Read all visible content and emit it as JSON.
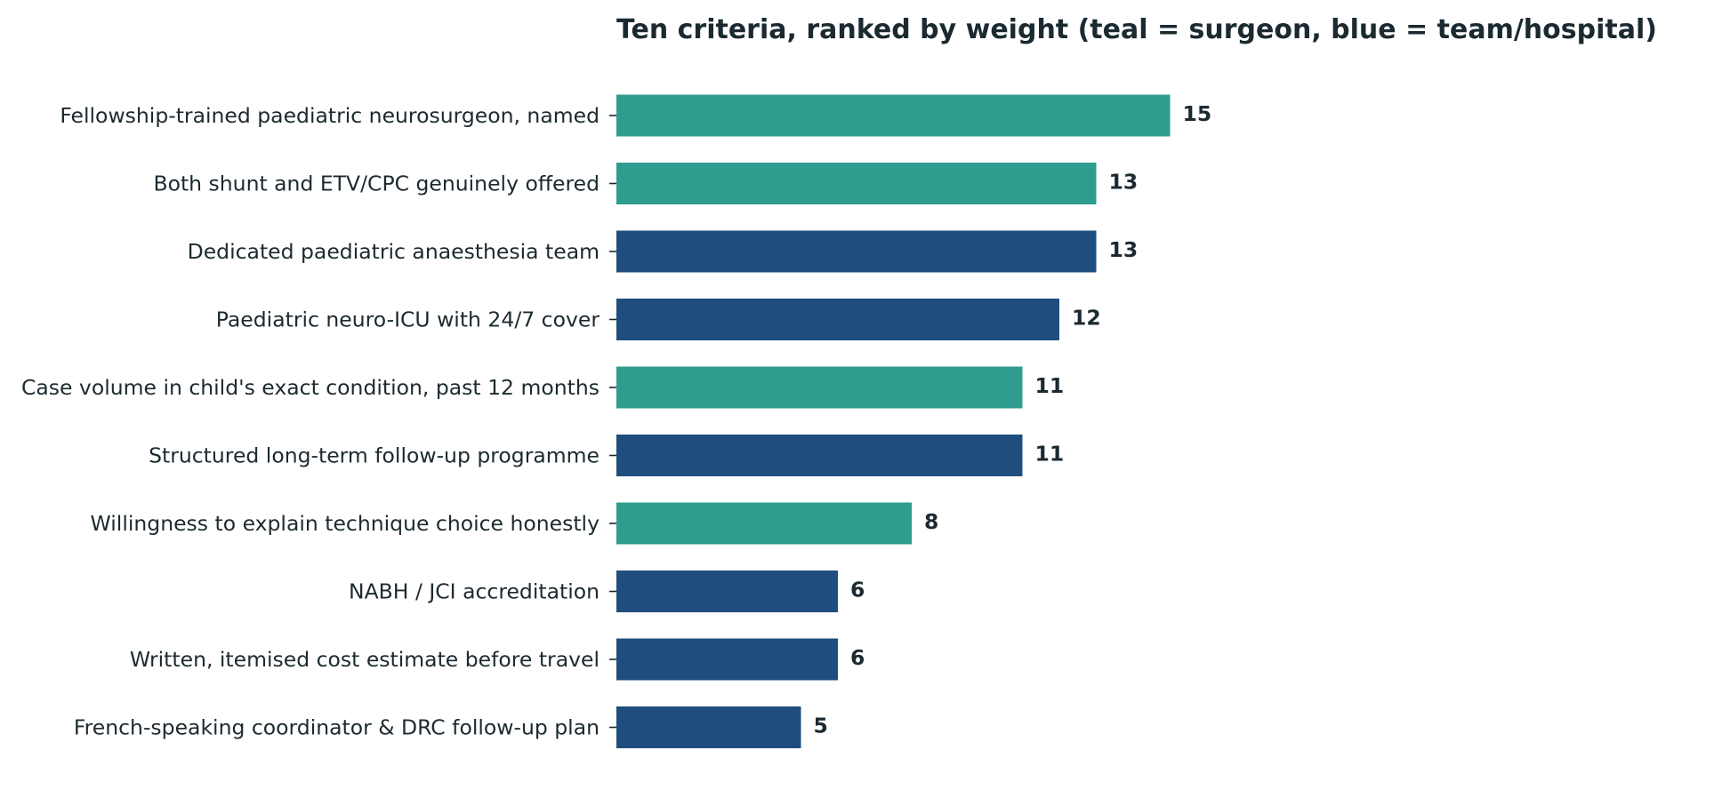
{
  "chart_data": {
    "type": "bar",
    "orientation": "horizontal",
    "title": "Ten criteria, ranked by weight (teal = surgeon, blue = team/hospital)",
    "xlabel": "",
    "ylabel": "",
    "xlim": [
      0,
      30
    ],
    "grid": false,
    "legend": "none",
    "categories": [
      "Fellowship-trained paediatric neurosurgeon, named",
      "Both shunt and ETV/CPC genuinely offered",
      "Dedicated paediatric anaesthesia team",
      "Paediatric neuro-ICU with 24/7 cover",
      "Case volume in child's exact condition, past 12 months",
      "Structured long-term follow-up programme",
      "Willingness to explain technique choice honestly",
      "NABH / JCI accreditation",
      "Written, itemised cost estimate before travel",
      "French-speaking coordinator & DRC follow-up plan"
    ],
    "values": [
      15,
      13,
      13,
      12,
      11,
      11,
      8,
      6,
      6,
      5
    ],
    "groups": [
      "surgeon",
      "surgeon",
      "team/hospital",
      "team/hospital",
      "surgeon",
      "team/hospital",
      "surgeon",
      "team/hospital",
      "team/hospital",
      "team/hospital"
    ],
    "colors": {
      "surgeon": "#2e9c8e",
      "team/hospital": "#1f4e7e"
    }
  }
}
